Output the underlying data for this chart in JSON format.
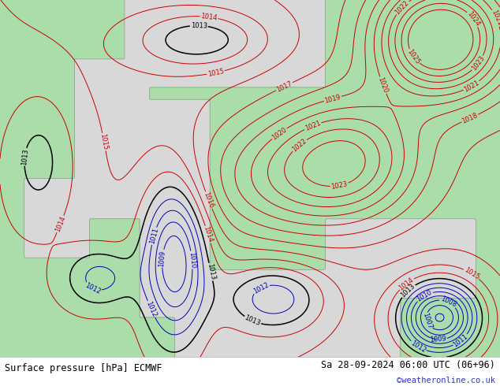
{
  "title_left": "Surface pressure [hPa] ECMWF",
  "title_right": "Sa 28-09-2024 06:00 UTC (06+96)",
  "credit": "©weatheronline.co.uk",
  "land_color": "#aaddaa",
  "sea_color": "#d8d8d8",
  "contour_color_red": "#cc0000",
  "contour_color_black": "#000000",
  "contour_color_blue": "#0000bb",
  "bottom_bar_color": "#ffffff",
  "title_fontsize": 8.5,
  "credit_fontsize": 7.5,
  "contour_fontsize": 6.0
}
